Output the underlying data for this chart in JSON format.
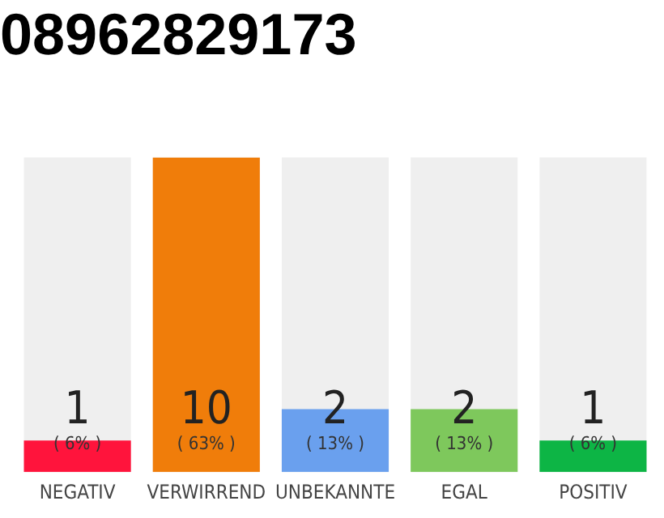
{
  "chart_data": {
    "type": "bar",
    "title": "08962829173",
    "categories": [
      "NEGATIV",
      "VERWIRREND",
      "UNBEKANNTE",
      "EGAL",
      "POSITIV"
    ],
    "values": [
      1,
      10,
      2,
      2,
      1
    ],
    "colors": [
      "#ff143c",
      "#f07d0a",
      "#6aa0ee",
      "#7ec85c",
      "#0db545"
    ],
    "ylim": [
      0,
      10
    ],
    "tick_labels": "x",
    "grid": false,
    "legend": false,
    "data_labels": true,
    "annotations": [
      "( 6% )",
      "( 63% )",
      "( 13% )",
      "( 13% )",
      "( 6% )"
    ]
  }
}
